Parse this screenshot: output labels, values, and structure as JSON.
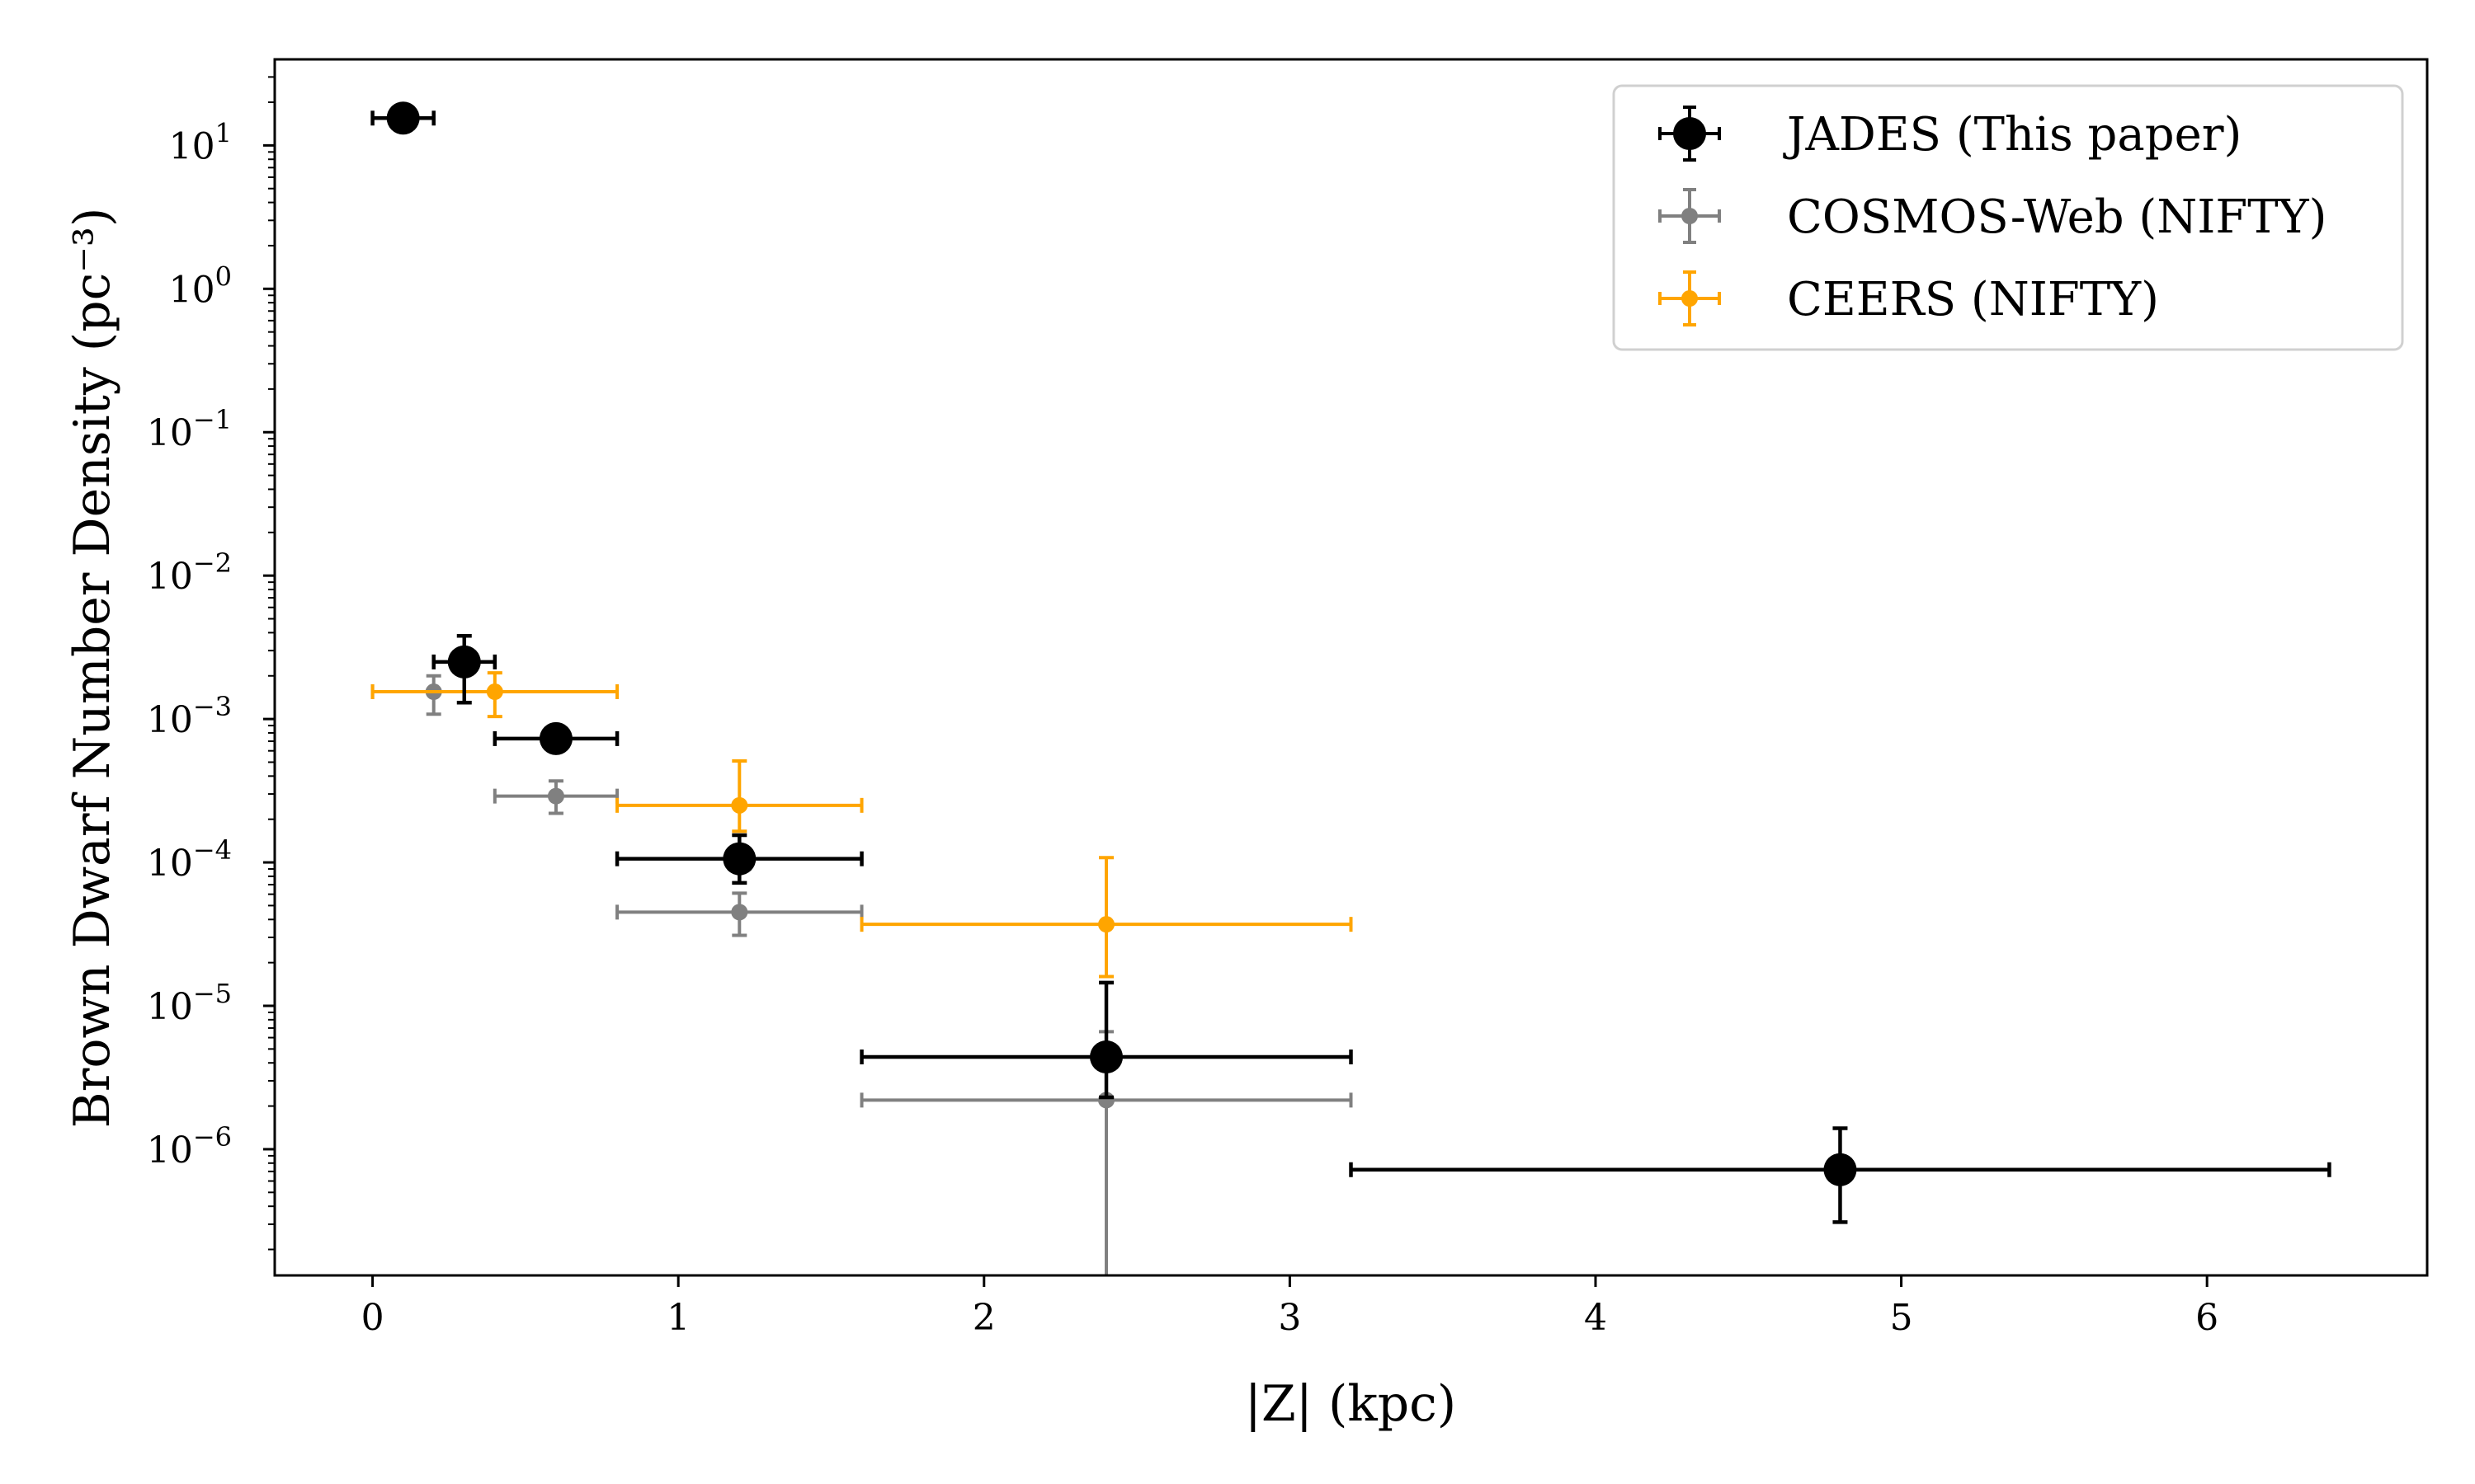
{
  "chart_data": {
    "type": "scatter",
    "title": "",
    "xlabel": "|Z| (kpc)",
    "ylabel": "Brown Dwarf Number Density (pc⁻³)",
    "xlim": [
      -0.32,
      6.72
    ],
    "ylim_log10": [
      -6.88,
      1.6
    ],
    "yscale": "log",
    "grid": false,
    "legend_position": "top-right",
    "xticks": [
      0,
      1,
      2,
      3,
      4,
      5,
      6
    ],
    "yticks": [
      {
        "exp": 1,
        "base": "10",
        "sup": "1"
      },
      {
        "exp": 0,
        "base": "10",
        "sup": "0"
      },
      {
        "exp": -1,
        "base": "10",
        "sup": "−1"
      },
      {
        "exp": -2,
        "base": "10",
        "sup": "−2"
      },
      {
        "exp": -3,
        "base": "10",
        "sup": "−3"
      },
      {
        "exp": -4,
        "base": "10",
        "sup": "−4"
      },
      {
        "exp": -5,
        "base": "10",
        "sup": "−5"
      },
      {
        "exp": -6,
        "base": "10",
        "sup": "−6"
      }
    ],
    "series": [
      {
        "name": "JADES (This paper)",
        "color": "#000000",
        "marker": "large",
        "points": [
          {
            "x": 0.1,
            "y": 15.5,
            "xlo": 0.0,
            "xhi": 0.2,
            "ylo": 15.5,
            "yhi": 15.5
          },
          {
            "x": 0.3,
            "y": 0.0025,
            "xlo": 0.2,
            "xhi": 0.4,
            "ylo": 0.0013,
            "yhi": 0.0038
          },
          {
            "x": 0.6,
            "y": 0.00073,
            "xlo": 0.4,
            "xhi": 0.8,
            "ylo": 0.00073,
            "yhi": 0.00073
          },
          {
            "x": 1.2,
            "y": 0.000106,
            "xlo": 0.8,
            "xhi": 1.6,
            "ylo": 7.2e-05,
            "yhi": 0.000155
          },
          {
            "x": 2.4,
            "y": 4.4e-06,
            "xlo": 1.6,
            "xhi": 3.2,
            "ylo": 2.3e-06,
            "yhi": 1.45e-05
          },
          {
            "x": 4.8,
            "y": 7.2e-07,
            "xlo": 3.2,
            "xhi": 6.4,
            "ylo": 3.1e-07,
            "yhi": 1.4e-06
          }
        ]
      },
      {
        "name": "COSMOS-Web (NIFTY)",
        "color": "#808080",
        "marker": "small",
        "points": [
          {
            "x": 0.2,
            "y": 0.00155,
            "xlo": 0.0,
            "xhi": 0.4,
            "ylo": 0.00108,
            "yhi": 0.002
          },
          {
            "x": 0.6,
            "y": 0.00029,
            "xlo": 0.4,
            "xhi": 0.8,
            "ylo": 0.00022,
            "yhi": 0.00037
          },
          {
            "x": 1.2,
            "y": 4.5e-05,
            "xlo": 0.8,
            "xhi": 1.6,
            "ylo": 3.1e-05,
            "yhi": 6.1e-05
          },
          {
            "x": 2.4,
            "y": 2.2e-06,
            "xlo": 1.6,
            "xhi": 3.2,
            "ylo": 1e-07,
            "yhi": 6.6e-06
          }
        ]
      },
      {
        "name": "CEERS (NIFTY)",
        "color": "#FFA500",
        "marker": "small",
        "points": [
          {
            "x": 0.4,
            "y": 0.00155,
            "xlo": 0.0,
            "xhi": 0.8,
            "ylo": 0.00104,
            "yhi": 0.0021
          },
          {
            "x": 1.2,
            "y": 0.00025,
            "xlo": 0.8,
            "xhi": 1.6,
            "ylo": 0.000165,
            "yhi": 0.00051
          },
          {
            "x": 2.4,
            "y": 3.7e-05,
            "xlo": 1.6,
            "xhi": 3.2,
            "ylo": 1.6e-05,
            "yhi": 0.000108
          }
        ]
      }
    ]
  }
}
